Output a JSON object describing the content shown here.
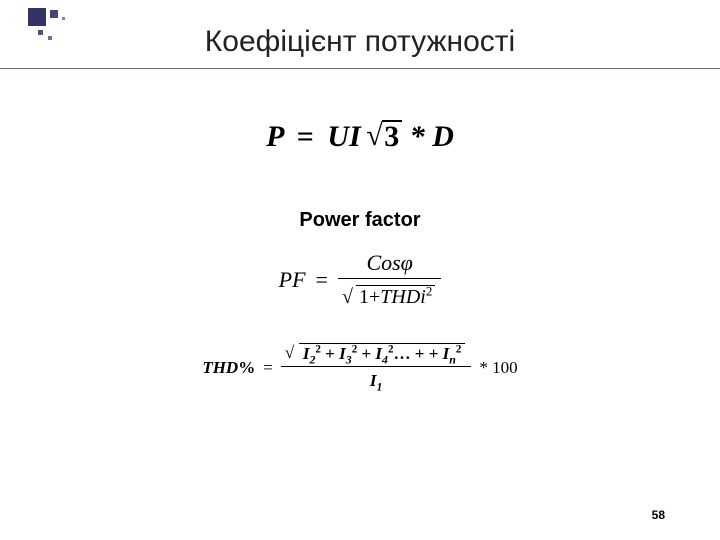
{
  "slide": {
    "title": "Коефіцієнт потужності",
    "page_number": "58",
    "accent_color": "#333366",
    "background_color": "#ffffff"
  },
  "formula1": {
    "type": "equation",
    "lhs": "P",
    "eq": "=",
    "rhs_prefix": "UI",
    "radicand": "3",
    "tail": " * D",
    "font_style": "bold-italic",
    "fontsize": 30
  },
  "subtitle": "Power factor",
  "formula2": {
    "type": "equation",
    "lhs": "PF",
    "eq": "=",
    "numerator": "Cosφ",
    "denominator_inside_sqrt_prefix": "1+",
    "denominator_inside_sqrt_var": "THDi",
    "denominator_inside_sqrt_exp": "2",
    "fontsize": 22
  },
  "formula3": {
    "type": "equation",
    "lhs_var": "THD",
    "lhs_percent": "%",
    "eq": "=",
    "numerator_terms": [
      {
        "base": "I",
        "sub": "2",
        "sup": "2"
      },
      {
        "base": "I",
        "sub": "3",
        "sup": "2"
      },
      {
        "base": "I",
        "sub": "4",
        "sup": "2"
      },
      {
        "ellipsis": "…"
      },
      {
        "base": "I",
        "sub": "n",
        "sup": "2"
      }
    ],
    "numerator_op": "+",
    "denominator": {
      "base": "I",
      "sub": "1"
    },
    "tail": " * 100",
    "fontsize": 17
  }
}
